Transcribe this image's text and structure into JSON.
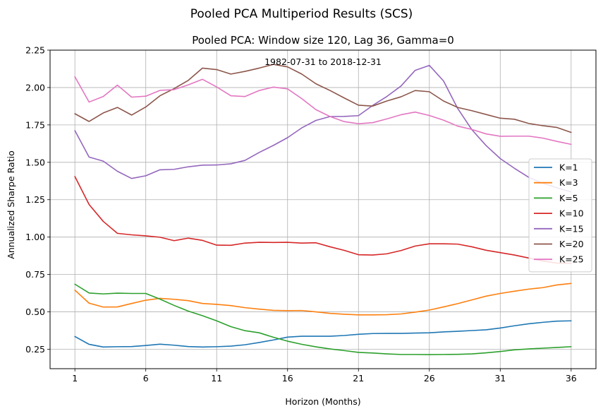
{
  "chart_data": {
    "type": "line",
    "suptitle": "Pooled PCA Multiperiod Results (SCS)",
    "title": "Pooled PCA: Window size 120, Lag 36, Gamma=0",
    "annotation": "1982-07-31 to 2018-12-31",
    "xlabel": "Horizon (Months)",
    "ylabel": "Annualized Sharpe Ratio",
    "xlim": [
      -0.75,
      37.75
    ],
    "ylim": [
      0.12,
      2.25
    ],
    "xticks": [
      1,
      6,
      11,
      16,
      21,
      26,
      31,
      36
    ],
    "yticks": [
      0.25,
      0.5,
      0.75,
      1.0,
      1.25,
      1.5,
      1.75,
      2.0,
      2.25
    ],
    "grid": true,
    "legend_position": "center-right",
    "x": [
      1,
      2,
      3,
      4,
      5,
      6,
      7,
      8,
      9,
      10,
      11,
      12,
      13,
      14,
      15,
      16,
      17,
      18,
      19,
      20,
      21,
      22,
      23,
      24,
      25,
      26,
      27,
      28,
      29,
      30,
      31,
      32,
      33,
      34,
      35,
      36
    ],
    "series": [
      {
        "name": "K=1",
        "color": "#1f77b4",
        "values": [
          0.335,
          0.283,
          0.265,
          0.267,
          0.268,
          0.275,
          0.284,
          0.277,
          0.268,
          0.265,
          0.267,
          0.271,
          0.28,
          0.295,
          0.312,
          0.331,
          0.337,
          0.337,
          0.337,
          0.342,
          0.35,
          0.355,
          0.356,
          0.356,
          0.358,
          0.36,
          0.366,
          0.37,
          0.375,
          0.38,
          0.392,
          0.407,
          0.42,
          0.43,
          0.438,
          0.44
        ]
      },
      {
        "name": "K=3",
        "color": "#ff7f0e",
        "values": [
          0.645,
          0.558,
          0.532,
          0.533,
          0.556,
          0.578,
          0.59,
          0.584,
          0.575,
          0.556,
          0.55,
          0.542,
          0.528,
          0.518,
          0.51,
          0.508,
          0.509,
          0.5,
          0.49,
          0.484,
          0.48,
          0.48,
          0.481,
          0.486,
          0.498,
          0.512,
          0.533,
          0.555,
          0.58,
          0.605,
          0.623,
          0.638,
          0.652,
          0.662,
          0.68,
          0.69
        ]
      },
      {
        "name": "K=5",
        "color": "#2ca02c",
        "values": [
          0.685,
          0.626,
          0.62,
          0.625,
          0.623,
          0.623,
          0.585,
          0.543,
          0.505,
          0.474,
          0.44,
          0.401,
          0.374,
          0.36,
          0.33,
          0.304,
          0.283,
          0.266,
          0.252,
          0.241,
          0.229,
          0.225,
          0.219,
          0.215,
          0.215,
          0.214,
          0.215,
          0.216,
          0.219,
          0.226,
          0.235,
          0.246,
          0.252,
          0.257,
          0.262,
          0.267
        ]
      },
      {
        "name": "K=10",
        "color": "#d62728",
        "values": [
          1.405,
          1.218,
          1.105,
          1.025,
          1.015,
          1.008,
          0.999,
          0.976,
          0.993,
          0.978,
          0.946,
          0.945,
          0.96,
          0.965,
          0.964,
          0.965,
          0.96,
          0.962,
          0.935,
          0.911,
          0.882,
          0.88,
          0.888,
          0.91,
          0.94,
          0.955,
          0.955,
          0.953,
          0.935,
          0.912,
          0.896,
          0.88,
          0.86,
          0.84,
          0.826,
          0.825
        ]
      },
      {
        "name": "K=15",
        "color": "#9467bd",
        "values": [
          1.712,
          1.535,
          1.508,
          1.44,
          1.392,
          1.41,
          1.45,
          1.453,
          1.47,
          1.481,
          1.482,
          1.49,
          1.513,
          1.566,
          1.613,
          1.665,
          1.73,
          1.78,
          1.806,
          1.807,
          1.812,
          1.88,
          1.94,
          2.01,
          2.115,
          2.148,
          2.044,
          1.86,
          1.718,
          1.612,
          1.525,
          1.46,
          1.4,
          1.36,
          1.33,
          1.302
        ]
      },
      {
        "name": "K=20",
        "color": "#8c564b",
        "values": [
          1.825,
          1.773,
          1.83,
          1.867,
          1.816,
          1.87,
          1.945,
          1.993,
          2.048,
          2.13,
          2.12,
          2.09,
          2.108,
          2.13,
          2.155,
          2.138,
          2.09,
          2.025,
          1.98,
          1.93,
          1.882,
          1.876,
          1.91,
          1.938,
          1.98,
          1.972,
          1.91,
          1.867,
          1.845,
          1.82,
          1.795,
          1.788,
          1.76,
          1.745,
          1.733,
          1.7
        ]
      },
      {
        "name": "K=25",
        "color": "#e377c2",
        "values": [
          2.072,
          1.903,
          1.94,
          2.016,
          1.936,
          1.942,
          1.981,
          1.986,
          2.018,
          2.055,
          2.004,
          1.945,
          1.94,
          1.98,
          2.003,
          1.991,
          1.926,
          1.852,
          1.806,
          1.772,
          1.758,
          1.765,
          1.79,
          1.818,
          1.836,
          1.813,
          1.782,
          1.742,
          1.72,
          1.69,
          1.674,
          1.675,
          1.675,
          1.662,
          1.64,
          1.62
        ]
      }
    ]
  }
}
